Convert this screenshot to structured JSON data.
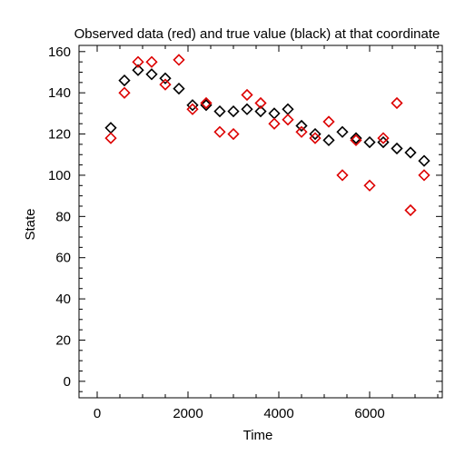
{
  "chart_data": {
    "type": "scatter",
    "title": "Observed data (red) and true value (black) at that coordinate",
    "xlabel": "Time",
    "ylabel": "State",
    "xlim": [
      -400,
      7600
    ],
    "ylim": [
      -8,
      163
    ],
    "xticks": [
      0,
      2000,
      4000,
      6000
    ],
    "yticks": [
      0,
      20,
      40,
      60,
      80,
      100,
      120,
      140,
      160
    ],
    "grid": false,
    "legend": "none",
    "marker": "diamond",
    "series": [
      {
        "color": "#000000",
        "points": [
          [
            300,
            123
          ],
          [
            600,
            146
          ],
          [
            900,
            151
          ],
          [
            1200,
            149
          ],
          [
            1500,
            147
          ],
          [
            1800,
            142
          ],
          [
            2100,
            134
          ],
          [
            2400,
            134
          ],
          [
            2700,
            131
          ],
          [
            3000,
            131
          ],
          [
            3300,
            132
          ],
          [
            3600,
            131
          ],
          [
            3900,
            130
          ],
          [
            4200,
            132
          ],
          [
            4500,
            124
          ],
          [
            4800,
            120
          ],
          [
            5100,
            117
          ],
          [
            5400,
            121
          ],
          [
            5700,
            118
          ],
          [
            6000,
            116
          ],
          [
            6300,
            116
          ],
          [
            6600,
            113
          ],
          [
            6900,
            111
          ],
          [
            7200,
            107
          ]
        ]
      },
      {
        "color": "#dd0000",
        "points": [
          [
            300,
            118
          ],
          [
            600,
            140
          ],
          [
            900,
            155
          ],
          [
            1200,
            155
          ],
          [
            1500,
            144
          ],
          [
            1800,
            156
          ],
          [
            2100,
            132
          ],
          [
            2400,
            135
          ],
          [
            2700,
            121
          ],
          [
            3000,
            120
          ],
          [
            3300,
            139
          ],
          [
            3600,
            135
          ],
          [
            3900,
            125
          ],
          [
            4200,
            127
          ],
          [
            4500,
            121
          ],
          [
            4800,
            118
          ],
          [
            5100,
            126
          ],
          [
            5400,
            100
          ],
          [
            5700,
            117
          ],
          [
            6000,
            95
          ],
          [
            6300,
            118
          ],
          [
            6600,
            135
          ],
          [
            6900,
            83
          ],
          [
            7200,
            100
          ]
        ]
      }
    ]
  }
}
